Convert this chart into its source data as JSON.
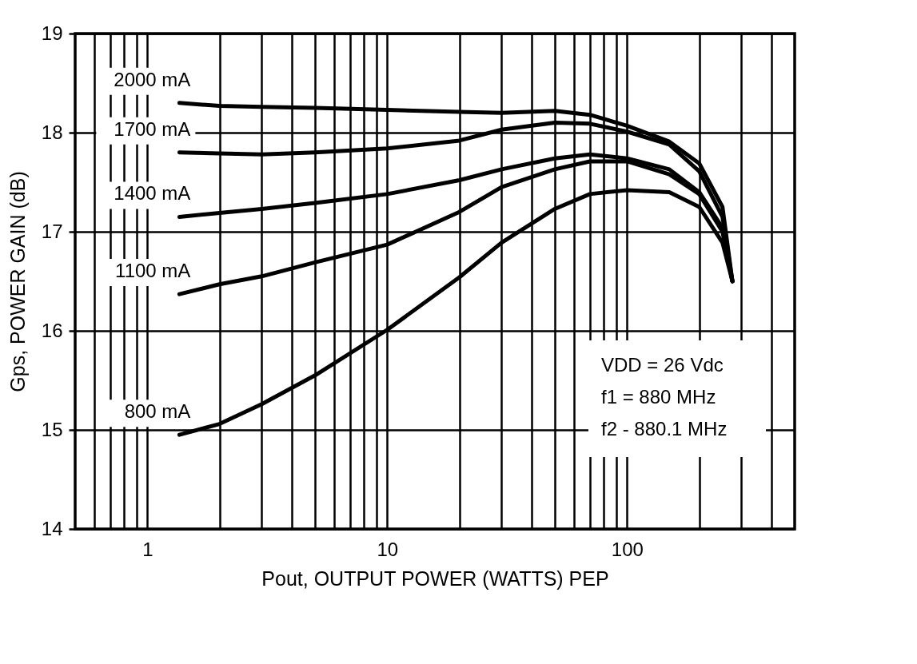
{
  "chart_data": {
    "type": "line",
    "xlabel": "Pout, OUTPUT POWER (WATTS) PEP",
    "ylabel": "Gps, POWER GAIN (dB)",
    "log": "x",
    "grid": true,
    "legend": false,
    "marker": "none",
    "line_style": "solid",
    "xlim": [
      0.5,
      500
    ],
    "ylim": [
      14,
      19
    ],
    "xticks": [
      {
        "value": 0.6,
        "label": null
      },
      {
        "value": 0.7,
        "label": null
      },
      {
        "value": 0.8,
        "label": null
      },
      {
        "value": 0.9,
        "label": null
      },
      1,
      {
        "value": 2,
        "label": null
      },
      {
        "value": 3,
        "label": null
      },
      {
        "value": 4,
        "label": null
      },
      {
        "value": 5,
        "label": null
      },
      {
        "value": 6,
        "label": null
      },
      {
        "value": 7,
        "label": null
      },
      {
        "value": 8,
        "label": null
      },
      {
        "value": 9,
        "label": null
      },
      10,
      {
        "value": 20,
        "label": null
      },
      {
        "value": 30,
        "label": null
      },
      {
        "value": 40,
        "label": null
      },
      {
        "value": 50,
        "label": null
      },
      {
        "value": 60,
        "label": null
      },
      {
        "value": 70,
        "label": null
      },
      {
        "value": 80,
        "label": null
      },
      {
        "value": 90,
        "label": null
      },
      100,
      {
        "value": 200,
        "label": null
      },
      {
        "value": 300,
        "label": null
      },
      {
        "value": 400,
        "label": null
      }
    ],
    "yticks": [
      14,
      15,
      16,
      17,
      18,
      19
    ],
    "x": [
      1.36,
      2,
      3,
      5,
      10,
      20,
      30,
      50,
      70,
      100,
      150,
      200,
      250,
      275
    ],
    "series": [
      {
        "name": "2000 mA",
        "color": "#000000",
        "values": [
          18.3,
          18.27,
          18.26,
          18.25,
          18.23,
          18.21,
          18.2,
          18.22,
          18.18,
          18.07,
          17.91,
          17.69,
          17.25,
          16.5
        ]
      },
      {
        "name": "1700 mA",
        "color": "#000000",
        "values": [
          17.8,
          17.79,
          17.78,
          17.8,
          17.84,
          17.92,
          18.03,
          18.1,
          18.09,
          18.01,
          17.88,
          17.61,
          17.15,
          16.5
        ]
      },
      {
        "name": "1400 mA",
        "color": "#000000",
        "values": [
          17.15,
          17.19,
          17.23,
          17.29,
          17.38,
          17.52,
          17.63,
          17.74,
          17.78,
          17.74,
          17.63,
          17.4,
          17.04,
          16.5
        ]
      },
      {
        "name": "1100 mA",
        "color": "#000000",
        "values": [
          16.37,
          16.47,
          16.55,
          16.69,
          16.87,
          17.2,
          17.45,
          17.63,
          17.71,
          17.71,
          17.58,
          17.38,
          17.0,
          16.5
        ]
      },
      {
        "name": "800 mA",
        "color": "#000000",
        "values": [
          14.95,
          15.06,
          15.26,
          15.55,
          16.01,
          16.54,
          16.89,
          17.23,
          17.38,
          17.42,
          17.4,
          17.25,
          16.89,
          16.5
        ]
      }
    ],
    "annotations": [
      "VDD = 26 Vdc",
      "f1 = 880 MHz",
      "f2 - 880.1 MHz"
    ]
  }
}
